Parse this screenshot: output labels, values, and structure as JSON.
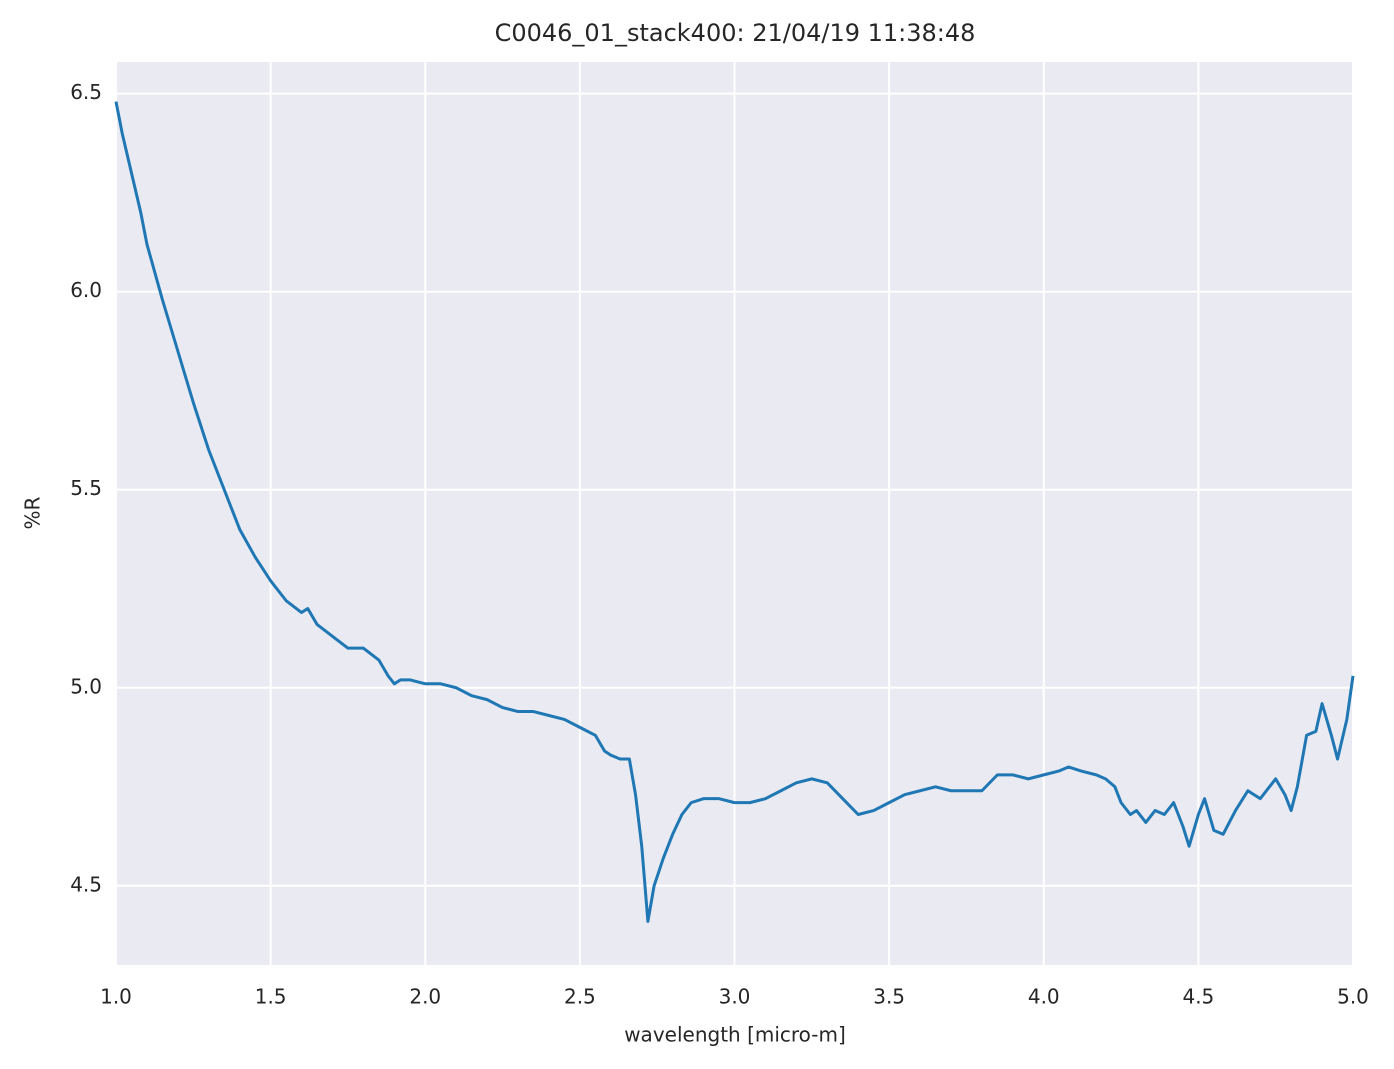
{
  "chart_data": {
    "type": "line",
    "title": "C0046_01_stack400:  21/04/19 11:38:48",
    "x_label": "wavelength [micro-m]",
    "y_label": "%R",
    "xlim": [
      1.0,
      5.0
    ],
    "ylim": [
      4.3,
      6.58
    ],
    "xticks": [
      {
        "value": 1.0,
        "label": "1.0"
      },
      {
        "value": 1.5,
        "label": "1.5"
      },
      {
        "value": 2.0,
        "label": "2.0"
      },
      {
        "value": 2.5,
        "label": "2.5"
      },
      {
        "value": 3.0,
        "label": "3.0"
      },
      {
        "value": 3.5,
        "label": "3.5"
      },
      {
        "value": 4.0,
        "label": "4.0"
      },
      {
        "value": 4.5,
        "label": "4.5"
      },
      {
        "value": 5.0,
        "label": "5.0"
      }
    ],
    "yticks": [
      4.5,
      {
        "value": 5.0,
        "label": "5.0"
      },
      5.5,
      {
        "value": 6.0,
        "label": "6.0"
      },
      6.5
    ],
    "grid": true,
    "x": [
      1.0,
      1.02,
      1.05,
      1.08,
      1.1,
      1.15,
      1.2,
      1.25,
      1.3,
      1.35,
      1.4,
      1.45,
      1.5,
      1.55,
      1.6,
      1.62,
      1.65,
      1.7,
      1.75,
      1.8,
      1.85,
      1.88,
      1.9,
      1.92,
      1.95,
      2.0,
      2.05,
      2.1,
      2.15,
      2.2,
      2.25,
      2.3,
      2.35,
      2.4,
      2.45,
      2.5,
      2.55,
      2.58,
      2.6,
      2.63,
      2.66,
      2.68,
      2.7,
      2.72,
      2.74,
      2.77,
      2.8,
      2.83,
      2.86,
      2.9,
      2.95,
      3.0,
      3.05,
      3.1,
      3.15,
      3.2,
      3.25,
      3.3,
      3.35,
      3.4,
      3.45,
      3.5,
      3.55,
      3.6,
      3.65,
      3.7,
      3.75,
      3.8,
      3.85,
      3.9,
      3.95,
      4.0,
      4.05,
      4.08,
      4.12,
      4.17,
      4.2,
      4.23,
      4.25,
      4.28,
      4.3,
      4.33,
      4.36,
      4.39,
      4.42,
      4.45,
      4.47,
      4.5,
      4.52,
      4.55,
      4.58,
      4.62,
      4.66,
      4.7,
      4.75,
      4.78,
      4.8,
      4.82,
      4.85,
      4.88,
      4.9,
      4.93,
      4.95,
      4.98,
      5.0
    ],
    "series": [
      {
        "color": "#1f77b4",
        "values": [
          6.48,
          6.4,
          6.3,
          6.2,
          6.12,
          5.98,
          5.85,
          5.72,
          5.6,
          5.5,
          5.4,
          5.33,
          5.27,
          5.22,
          5.19,
          5.2,
          5.16,
          5.13,
          5.1,
          5.1,
          5.07,
          5.03,
          5.01,
          5.02,
          5.02,
          5.01,
          5.01,
          5.0,
          4.98,
          4.97,
          4.95,
          4.94,
          4.94,
          4.93,
          4.92,
          4.9,
          4.88,
          4.84,
          4.83,
          4.82,
          4.82,
          4.73,
          4.6,
          4.41,
          4.5,
          4.57,
          4.63,
          4.68,
          4.71,
          4.72,
          4.72,
          4.71,
          4.71,
          4.72,
          4.74,
          4.76,
          4.77,
          4.76,
          4.72,
          4.68,
          4.69,
          4.71,
          4.73,
          4.74,
          4.75,
          4.74,
          4.74,
          4.74,
          4.78,
          4.78,
          4.77,
          4.78,
          4.79,
          4.8,
          4.79,
          4.78,
          4.77,
          4.75,
          4.71,
          4.68,
          4.69,
          4.66,
          4.69,
          4.68,
          4.71,
          4.65,
          4.6,
          4.68,
          4.72,
          4.64,
          4.63,
          4.69,
          4.74,
          4.72,
          4.77,
          4.73,
          4.69,
          4.75,
          4.88,
          4.89,
          4.96,
          4.88,
          4.82,
          4.92,
          5.03
        ]
      }
    ]
  }
}
